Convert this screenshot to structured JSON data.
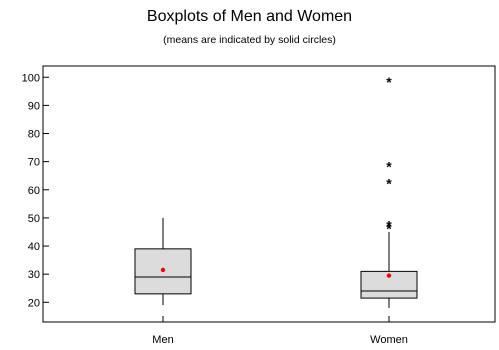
{
  "chart_data": {
    "type": "boxplot",
    "title": "Boxplots of Men and Women",
    "subtitle": "(means are indicated by solid circles)",
    "xlabel": "",
    "ylabel": "",
    "ylim": [
      13,
      104
    ],
    "yticks": [
      20,
      30,
      40,
      50,
      60,
      70,
      80,
      90,
      100
    ],
    "grid": false,
    "box_color": "#dcdcdc",
    "mean_color": "#ff0000",
    "categories": [
      "Men",
      "Women"
    ],
    "boxes": [
      {
        "label": "Men",
        "whisker_low": 19,
        "q1": 23,
        "median": 29,
        "q3": 39,
        "whisker_high": 50,
        "mean": 31.5,
        "outliers": []
      },
      {
        "label": "Women",
        "whisker_low": 18,
        "q1": 21.5,
        "median": 24,
        "q3": 31,
        "whisker_high": 45,
        "mean": 29.5,
        "outliers": [
          47,
          48,
          63,
          69,
          99
        ]
      }
    ]
  }
}
